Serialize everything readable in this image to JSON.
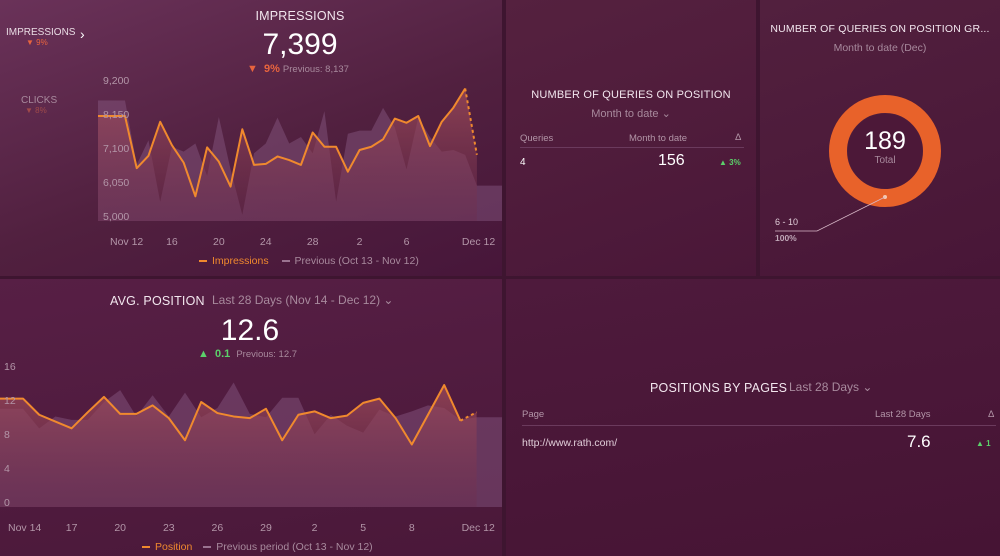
{
  "impressions": {
    "side": [
      {
        "label": "IMPRESSIONS",
        "change": "9%",
        "dir": "down"
      },
      {
        "label": "CLICKS",
        "change": "8%",
        "dir": "down"
      }
    ],
    "title": "IMPRESSIONS",
    "value": "7,399",
    "change": "9%",
    "previous": "Previous: 8,137",
    "legend": [
      "Impressions",
      "Previous (Oct 13 - Nov 12)"
    ]
  },
  "position": {
    "title": "AVG. POSITION",
    "range": "Last 28 Days (Nov 14 - Dec 12)",
    "value": "12.6",
    "change": "0.1",
    "previous": "Previous: 12.7",
    "legend": [
      "Position",
      "Previous period (Oct 13 - Nov 12)"
    ]
  },
  "queries": {
    "title": "NUMBER OF QUERIES ON POSITION",
    "range": "Month to date",
    "headers": [
      "Queries",
      "Month to date",
      "Δ"
    ],
    "row": {
      "queries": "4",
      "value": "156",
      "change": "3%"
    }
  },
  "groups": {
    "title": "NUMBER OF QUERIES ON POSITION GR...",
    "subtitle": "Month to date (Dec)",
    "total": "189",
    "total_label": "Total",
    "slice_label": "6 - 10",
    "slice_pct": "100%",
    "slices": [
      {
        "label": "6 - 10",
        "value": 189,
        "color": "#e8622a"
      }
    ]
  },
  "pages": {
    "title": "POSITIONS BY PAGES",
    "range": "Last 28 Days",
    "headers": [
      "Page",
      "Last 28 Days",
      "Δ"
    ],
    "rows": [
      {
        "page": "http://www.rath.com/",
        "value": "7.6",
        "change": "1"
      }
    ]
  },
  "colors": {
    "accent": "#f0892e",
    "previous": "#9a7390",
    "up": "#5bd16a",
    "down": "#e8643e",
    "donut": "#e8622a"
  },
  "chart_data": [
    {
      "type": "line",
      "title": "IMPRESSIONS",
      "ylim": [
        5000,
        9200
      ],
      "yticks": [
        "9,200",
        "8,150",
        "7,100",
        "6,050",
        "5,000"
      ],
      "xticks": [
        "Nov 12",
        "16",
        "20",
        "24",
        "28",
        "2",
        "6",
        "Dec 12"
      ],
      "series": [
        {
          "name": "Impressions",
          "values": [
            8150,
            6540,
            6920,
            7970,
            7250,
            6710,
            5670,
            7180,
            6740,
            5970,
            7740,
            6640,
            6670,
            6900,
            6790,
            6640,
            7640,
            7200,
            7200,
            6430,
            7100,
            7200,
            7430,
            8070,
            7940,
            8150,
            7220,
            7970,
            8410,
            9000,
            6950
          ]
        },
        {
          "name": "Previous (Oct 13 - Nov 12)",
          "values": [
            8630,
            6650,
            7400,
            5500,
            7200,
            7050,
            7300,
            6300,
            8120,
            6500,
            5100,
            7000,
            7300,
            8100,
            7300,
            7500,
            7000,
            8300,
            5500,
            7600,
            7700,
            7700,
            8400,
            7800,
            6500,
            8100,
            7500,
            7050,
            7100,
            6950,
            6000
          ]
        }
      ]
    },
    {
      "type": "line",
      "title": "AVG. POSITION",
      "ylim": [
        0,
        16
      ],
      "yticks": [
        "16",
        "12",
        "8",
        "4",
        "0"
      ],
      "xticks": [
        "Nov 14",
        "17",
        "20",
        "23",
        "26",
        "29",
        "2",
        "5",
        "8",
        "Dec 12"
      ],
      "series": [
        {
          "name": "Position",
          "values": [
            12.4,
            10.5,
            9.7,
            8.9,
            10.8,
            12.6,
            10.6,
            10.6,
            11.6,
            10.1,
            7.5,
            12.0,
            10.7,
            10.3,
            10.1,
            11.2,
            7.5,
            10.5,
            10.9,
            10.1,
            10.4,
            11.9,
            12.4,
            10.1,
            7.0,
            10.5,
            14.0,
            9.8,
            10.8
          ]
        },
        {
          "name": "Previous period (Oct 13 - Nov 12)",
          "values": [
            11.2,
            8.9,
            10.3,
            9.9,
            9.9,
            12.0,
            13.4,
            10.3,
            12.8,
            10.3,
            13.1,
            10.2,
            11.3,
            14.3,
            10.6,
            10.2,
            12.5,
            12.5,
            8.2,
            10.5,
            9.2,
            8.4,
            11.1,
            10.3,
            10.9,
            11.6,
            11.3,
            9.9,
            10.2
          ]
        }
      ]
    }
  ]
}
